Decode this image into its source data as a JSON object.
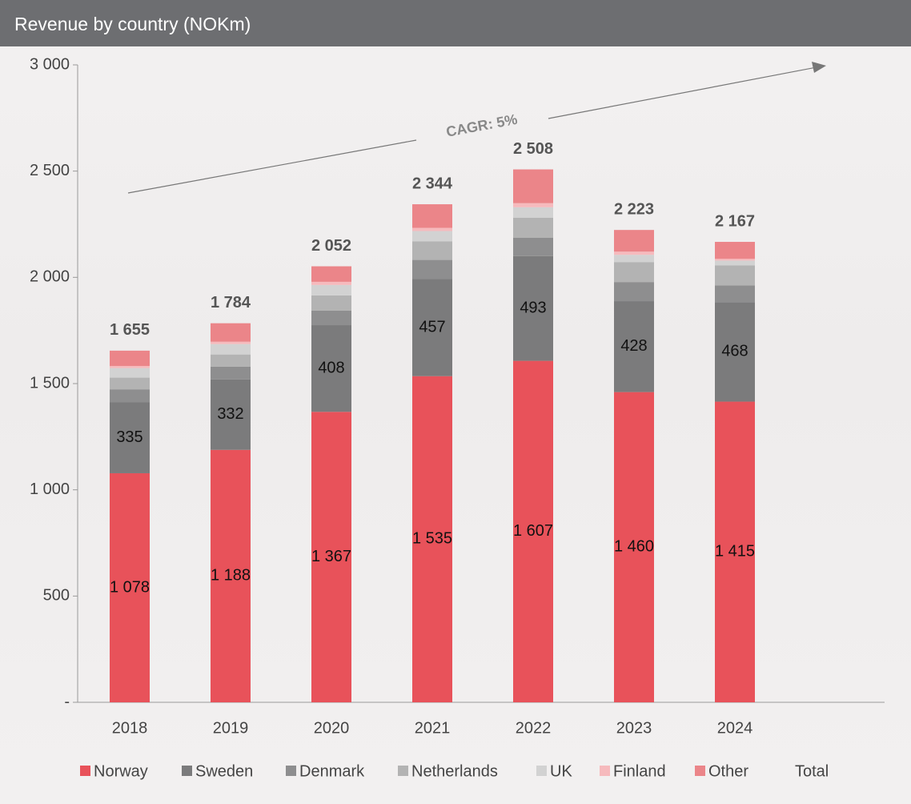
{
  "chart_data": {
    "type": "stacked_bar",
    "title": "Revenue by country (NOKm)",
    "annotation": "CAGR: 5%",
    "categories": [
      "2018",
      "2019",
      "2020",
      "2021",
      "2022",
      "2023",
      "2024"
    ],
    "ylim": [
      0,
      3000
    ],
    "yticks": [
      {
        "value": 0,
        "label": "-"
      },
      500,
      {
        "value": 1000,
        "label": "1 000"
      },
      {
        "value": 1500,
        "label": "1 500"
      },
      {
        "value": 2000,
        "label": "2 000"
      },
      {
        "value": 2500,
        "label": "2 500"
      },
      {
        "value": 3000,
        "label": "3 000"
      }
    ],
    "series": [
      {
        "name": "Norway",
        "color": "#e8525a",
        "values": [
          1078,
          1188,
          1367,
          1535,
          1607,
          1460,
          1415
        ],
        "value_labels": [
          "1 078",
          "1 188",
          "1 367",
          "1 535",
          "1 607",
          "1 460",
          "1 415"
        ]
      },
      {
        "name": "Sweden",
        "color": "#7b7b7c",
        "values": [
          335,
          332,
          408,
          457,
          493,
          428,
          468
        ]
      },
      {
        "name": "Denmark",
        "color": "#8e8e8f",
        "values": [
          60,
          60,
          68,
          90,
          87,
          90,
          79
        ]
      },
      {
        "name": "Netherlands",
        "color": "#b3b3b3",
        "values": [
          55,
          57,
          72,
          87,
          94,
          94,
          94
        ]
      },
      {
        "name": "UK",
        "color": "#d2d2d2",
        "values": [
          45,
          49,
          49,
          49,
          49,
          34,
          23
        ]
      },
      {
        "name": "Finland",
        "color": "#f6babd",
        "values": [
          10,
          11,
          15,
          15,
          19,
          15,
          8
        ]
      },
      {
        "name": "Other",
        "color": "#eb8589",
        "values": [
          72,
          87,
          73,
          111,
          159,
          102,
          80
        ]
      },
      {
        "name": "Total",
        "values": [
          1655,
          1784,
          2052,
          2344,
          2508,
          2223,
          2167
        ],
        "value_labels": [
          "1 655",
          "1 784",
          "2 052",
          "2 344",
          "2 508",
          "2 223",
          "2 167"
        ]
      }
    ]
  }
}
